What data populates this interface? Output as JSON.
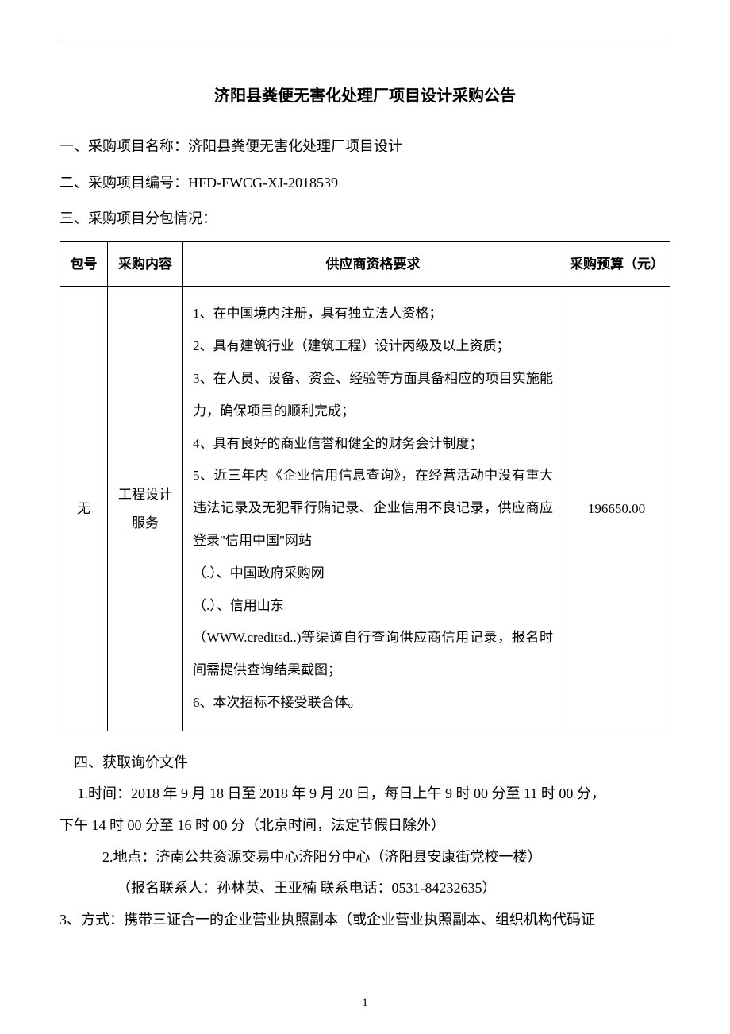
{
  "title": "济阳县粪便无害化处理厂项目设计采购公告",
  "lines": {
    "item1": "一、采购项目名称：济阳县粪便无害化处理厂项目设计",
    "item2": "二、采购项目编号：HFD-FWCG-XJ-2018539",
    "item3": "三、采购项目分包情况："
  },
  "table": {
    "headers": {
      "pkg": "包号",
      "content": "采购内容",
      "supplier": "供应商资格要求",
      "budget": "采购预算（元）"
    },
    "row": {
      "pkg": "无",
      "content_l1": "工程设计",
      "content_l2": "服务",
      "supplier_lines": {
        "s1": "1、在中国境内注册，具有独立法人资格；",
        "s2": "2、具有建筑行业（建筑工程）设计丙级及以上资质；",
        "s3": "3、在人员、设备、资金、经验等方面具备相应的项目实施能力，确保项目的顺利完成；",
        "s4": "4、具有良好的商业信誉和健全的财务会计制度；",
        "s5": "5、近三年内《企业信用信息查询》，在经营活动中没有重大违法记录及无犯罪行贿记录、企业信用不良记录，供应商应登录\"信用中国\"网站",
        "s6": "（.）、中国政府采购网",
        "s7": "（.）、信用山东",
        "s8": "（WWW.creditsd..)等渠道自行查询供应商信用记录，报名时间需提供查询结果截图；",
        "s9": "6、本次招标不接受联合体。"
      },
      "budget": "196650.00"
    }
  },
  "section4": {
    "title": "四、获取询价文件",
    "time_l1": " 1.时间：2018 年 9 月 18 日至 2018 年 9 月 20 日，每日上午 9 时 00 分至 11 时 00 分，",
    "time_l2": "下午 14 时 00 分至 16 时 00 分（北京时间，法定节假日除外）",
    "place": "2.地点：济南公共资源交易中心济阳分中心（济阳县安康街党校一楼）",
    "contact": "（报名联系人：孙林英、王亚楠 联系电话：0531-84232635）",
    "method": "3、方式：携带三证合一的企业营业执照副本（或企业营业执照副本、组织机构代码证"
  },
  "page_number": "1"
}
